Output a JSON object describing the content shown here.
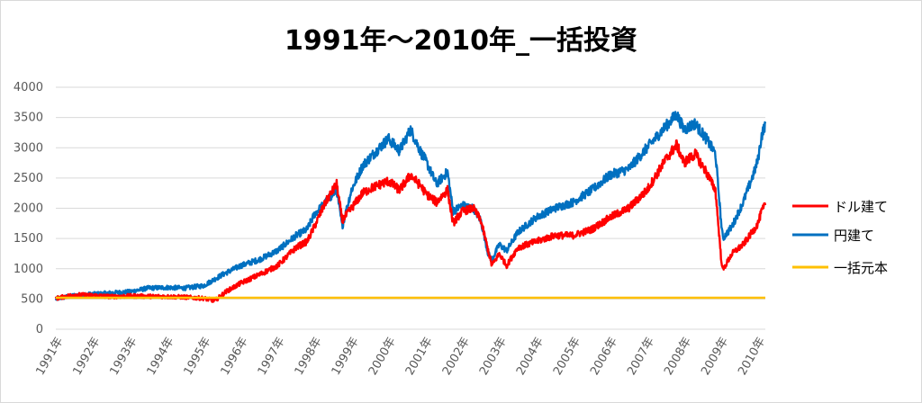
{
  "chart_data": {
    "type": "line",
    "title": "1991年〜2010年_一括投資",
    "xlabel": "",
    "ylabel": "",
    "ylim": [
      0,
      4000
    ],
    "yticks": [
      0,
      500,
      1000,
      1500,
      2000,
      2500,
      3000,
      3500,
      4000
    ],
    "xlim": [
      1991,
      2010.2
    ],
    "xtick_labels": [
      "1991年",
      "1992年",
      "1993年",
      "1994年",
      "1995年",
      "1996年",
      "1997年",
      "1998年",
      "1999年",
      "2000年",
      "2001年",
      "2002年",
      "2003年",
      "2004年",
      "2005年",
      "2006年",
      "2007年",
      "2008年",
      "2009年",
      "2010年"
    ],
    "grid": true,
    "legend_position": "right",
    "series": [
      {
        "name": "ドル建て",
        "color": "#ff0000",
        "points": [
          [
            1991.0,
            510
          ],
          [
            1991.5,
            570
          ],
          [
            1992.0,
            560
          ],
          [
            1992.5,
            540
          ],
          [
            1993.0,
            550
          ],
          [
            1993.5,
            545
          ],
          [
            1994.0,
            540
          ],
          [
            1994.5,
            530
          ],
          [
            1995.0,
            510
          ],
          [
            1995.3,
            470
          ],
          [
            1995.6,
            620
          ],
          [
            1996.0,
            760
          ],
          [
            1996.5,
            900
          ],
          [
            1997.0,
            1050
          ],
          [
            1997.5,
            1350
          ],
          [
            1997.8,
            1450
          ],
          [
            1998.0,
            1700
          ],
          [
            1998.3,
            2100
          ],
          [
            1998.6,
            2400
          ],
          [
            1998.75,
            1800
          ],
          [
            1999.0,
            2000
          ],
          [
            1999.3,
            2250
          ],
          [
            1999.6,
            2350
          ],
          [
            2000.0,
            2450
          ],
          [
            2000.3,
            2300
          ],
          [
            2000.6,
            2550
          ],
          [
            2000.9,
            2350
          ],
          [
            2001.0,
            2250
          ],
          [
            2001.3,
            2100
          ],
          [
            2001.6,
            2300
          ],
          [
            2001.75,
            1750
          ],
          [
            2002.0,
            1950
          ],
          [
            2002.3,
            2000
          ],
          [
            2002.5,
            1800
          ],
          [
            2002.7,
            1300
          ],
          [
            2002.8,
            1050
          ],
          [
            2003.0,
            1250
          ],
          [
            2003.2,
            1050
          ],
          [
            2003.5,
            1350
          ],
          [
            2004.0,
            1450
          ],
          [
            2004.5,
            1550
          ],
          [
            2005.0,
            1550
          ],
          [
            2005.5,
            1650
          ],
          [
            2006.0,
            1850
          ],
          [
            2006.5,
            2000
          ],
          [
            2007.0,
            2300
          ],
          [
            2007.5,
            2800
          ],
          [
            2007.8,
            3050
          ],
          [
            2008.0,
            2750
          ],
          [
            2008.3,
            2900
          ],
          [
            2008.6,
            2600
          ],
          [
            2008.85,
            2300
          ],
          [
            2009.0,
            1200
          ],
          [
            2009.05,
            980
          ],
          [
            2009.3,
            1250
          ],
          [
            2009.6,
            1400
          ],
          [
            2009.9,
            1650
          ],
          [
            2010.0,
            1750
          ],
          [
            2010.1,
            1950
          ],
          [
            2010.2,
            2050
          ]
        ]
      },
      {
        "name": "円建て",
        "color": "#0070c0",
        "points": [
          [
            1991.0,
            500
          ],
          [
            1991.5,
            560
          ],
          [
            1992.0,
            580
          ],
          [
            1992.5,
            600
          ],
          [
            1993.0,
            620
          ],
          [
            1993.5,
            680
          ],
          [
            1994.0,
            690
          ],
          [
            1994.5,
            680
          ],
          [
            1995.0,
            720
          ],
          [
            1995.5,
            900
          ],
          [
            1996.0,
            1050
          ],
          [
            1996.5,
            1150
          ],
          [
            1997.0,
            1300
          ],
          [
            1997.5,
            1550
          ],
          [
            1997.8,
            1650
          ],
          [
            1998.0,
            1900
          ],
          [
            1998.3,
            2100
          ],
          [
            1998.6,
            2300
          ],
          [
            1998.75,
            1700
          ],
          [
            1999.0,
            2300
          ],
          [
            1999.3,
            2700
          ],
          [
            1999.6,
            2900
          ],
          [
            2000.0,
            3150
          ],
          [
            2000.3,
            2950
          ],
          [
            2000.6,
            3300
          ],
          [
            2000.9,
            2900
          ],
          [
            2001.0,
            2800
          ],
          [
            2001.3,
            2400
          ],
          [
            2001.6,
            2600
          ],
          [
            2001.75,
            1950
          ],
          [
            2002.0,
            2050
          ],
          [
            2002.3,
            2000
          ],
          [
            2002.5,
            1800
          ],
          [
            2002.7,
            1250
          ],
          [
            2002.8,
            1150
          ],
          [
            2003.0,
            1400
          ],
          [
            2003.2,
            1300
          ],
          [
            2003.5,
            1600
          ],
          [
            2004.0,
            1850
          ],
          [
            2004.5,
            2000
          ],
          [
            2005.0,
            2100
          ],
          [
            2005.5,
            2300
          ],
          [
            2006.0,
            2550
          ],
          [
            2006.5,
            2650
          ],
          [
            2007.0,
            3000
          ],
          [
            2007.5,
            3350
          ],
          [
            2007.8,
            3550
          ],
          [
            2008.0,
            3300
          ],
          [
            2008.3,
            3400
          ],
          [
            2008.6,
            3150
          ],
          [
            2008.85,
            2900
          ],
          [
            2009.0,
            1800
          ],
          [
            2009.05,
            1500
          ],
          [
            2009.3,
            1700
          ],
          [
            2009.6,
            2100
          ],
          [
            2009.9,
            2600
          ],
          [
            2010.0,
            2800
          ],
          [
            2010.1,
            3200
          ],
          [
            2010.2,
            3400
          ]
        ]
      },
      {
        "name": "一括元本",
        "color": "#ffc000",
        "points": [
          [
            1991.0,
            520
          ],
          [
            2010.2,
            520
          ]
        ]
      }
    ]
  }
}
